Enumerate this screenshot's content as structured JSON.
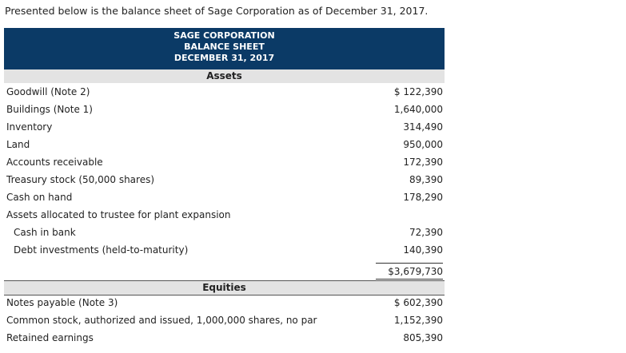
{
  "intro": "Presented below is the balance sheet of Sage Corporation as of December 31, 2017.",
  "header": {
    "company": "SAGE CORPORATION",
    "statement": "BALANCE SHEET",
    "date": "DECEMBER 31, 2017"
  },
  "sections": [
    {
      "title": "Assets",
      "rows": [
        {
          "label": "Goodwill (Note 2)",
          "amount": "$ 122,390"
        },
        {
          "label": "Buildings (Note 1)",
          "amount": "1,640,000"
        },
        {
          "label": "Inventory",
          "amount": "314,490"
        },
        {
          "label": "Land",
          "amount": "950,000"
        },
        {
          "label": "Accounts receivable",
          "amount": "172,390"
        },
        {
          "label": "Treasury stock (50,000 shares)",
          "amount": "89,390"
        },
        {
          "label": "Cash on hand",
          "amount": "178,290"
        },
        {
          "label": "Assets allocated to trustee for plant expansion",
          "subrows": [
            {
              "label": "Cash in bank",
              "amount": "72,390"
            },
            {
              "label": "Debt investments (held-to-maturity)",
              "amount": "140,390"
            }
          ]
        }
      ],
      "total": "$3,679,730"
    },
    {
      "title": "Equities",
      "rows": [
        {
          "label": "Notes payable (Note 3)",
          "amount": "$ 602,390"
        },
        {
          "label": "Common stock, authorized and issued, 1,000,000 shares, no par",
          "amount": "1,152,390"
        },
        {
          "label": "Retained earnings",
          "amount": "805,390"
        }
      ]
    }
  ]
}
